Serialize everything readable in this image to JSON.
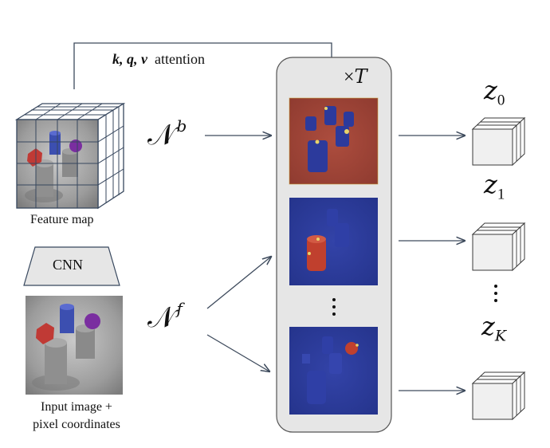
{
  "attention_label": {
    "kqv": "k, q, v",
    "word": "attention"
  },
  "iteration_label": {
    "times": "×",
    "T": "T"
  },
  "noise_labels": {
    "background": {
      "base": "𝒩",
      "sup": "b"
    },
    "foreground": {
      "base": "𝒩",
      "sup": "f"
    }
  },
  "feature_map_label": "Feature map",
  "cnn_label": "CNN",
  "input_label": {
    "line1": "Input image +",
    "line2": "pixel coordinates"
  },
  "slots": [
    {
      "base": "z",
      "sub": "0"
    },
    {
      "base": "z",
      "sub": "1"
    },
    {
      "base": "z",
      "sub": "K"
    }
  ],
  "ellipsis": "⋮",
  "colors": {
    "panel_fill": "#e6e6e6",
    "arrow": "#3d4a5c",
    "mask_background": "#a3473a",
    "mask_foreground": "#2c3a9c",
    "object_highlight": "#c0402e",
    "cube_face": "#f0f0f0"
  }
}
